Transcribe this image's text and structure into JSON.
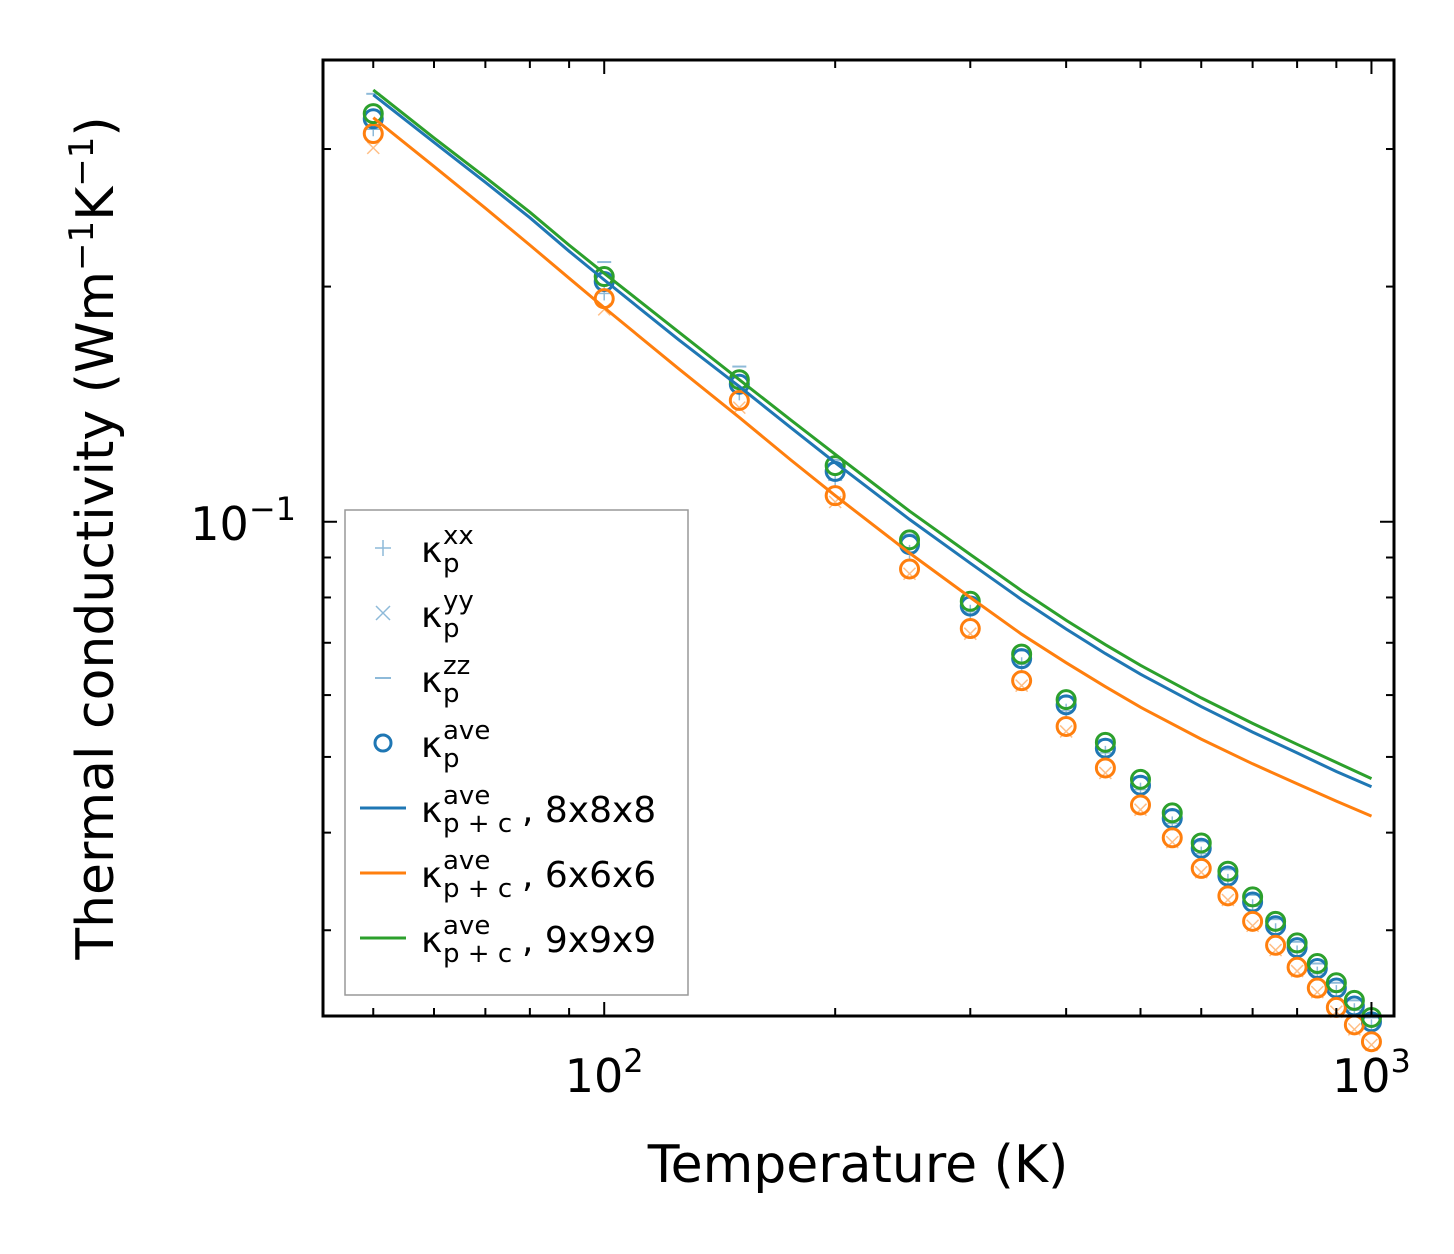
{
  "chart_data": {
    "type": "scatter",
    "title": "",
    "xlabel": "Temperature (K)",
    "ylabel_main": "Thermal conductivity (Wm",
    "ylabel_sup1": "−1",
    "ylabel_mid": "K",
    "ylabel_sup2": "−1",
    "ylabel_end": ")",
    "xscale": "log",
    "yscale": "log",
    "xlim": [
      43,
      1070
    ],
    "ylim": [
      0.0233,
      0.39
    ],
    "xticks": [
      {
        "base": "10",
        "exp": "2",
        "value": 100
      },
      {
        "base": "10",
        "exp": "3",
        "value": 1000
      }
    ],
    "yticks": [
      {
        "base": "10",
        "exp": "−1",
        "value": 0.1
      }
    ],
    "legend_position": "lower-left",
    "x": [
      50,
      100,
      150,
      200,
      250,
      300,
      350,
      400,
      450,
      500,
      550,
      600,
      650,
      700,
      750,
      800,
      850,
      900,
      950,
      1000
    ],
    "point_series": [
      {
        "name": "8x8x8",
        "color": "#1f77b4",
        "values": [
          0.328,
          0.203,
          0.15,
          0.116,
          0.0935,
          0.078,
          0.0668,
          0.0583,
          0.0513,
          0.046,
          0.0417,
          0.0382,
          0.0352,
          0.0326,
          0.0304,
          0.0285,
          0.0268,
          0.0253,
          0.024,
          0.0229
        ],
        "xx": [
          0.318,
          0.196,
          0.146,
          0.113,
          0.0915,
          0.0767,
          0.0657,
          0.0573,
          0.0506,
          0.0454,
          0.0411,
          0.0376,
          0.0347,
          0.0322,
          0.03,
          0.0281,
          0.0264,
          0.025,
          0.0237,
          0.0226
        ],
        "zz": [
          0.353,
          0.215,
          0.158,
          0.12,
          0.0963,
          0.08,
          0.0684,
          0.0597,
          0.0526,
          0.0471,
          0.0427,
          0.039,
          0.0359,
          0.0333,
          0.031,
          0.029,
          0.0272,
          0.0257,
          0.0244,
          0.0232
        ]
      },
      {
        "name": "6x6x6",
        "color": "#ff7f0e",
        "values": [
          0.314,
          0.193,
          0.143,
          0.108,
          0.087,
          0.073,
          0.0626,
          0.0547,
          0.0484,
          0.0434,
          0.0394,
          0.036,
          0.0332,
          0.0308,
          0.0287,
          0.0269,
          0.0253,
          0.0239,
          0.0227,
          0.0216
        ],
        "yy": [
          0.301,
          0.187,
          0.14,
          0.106,
          0.0858,
          0.0719,
          0.0617,
          0.0539,
          0.0477,
          0.0428,
          0.0389,
          0.0356,
          0.0328,
          0.0304,
          0.0283,
          0.0266,
          0.025,
          0.0236,
          0.0224,
          0.0214
        ]
      },
      {
        "name": "9x9x9",
        "color": "#2ca02c",
        "values": [
          0.333,
          0.206,
          0.152,
          0.118,
          0.0948,
          0.0791,
          0.0677,
          0.0592,
          0.0522,
          0.0468,
          0.0424,
          0.0388,
          0.0357,
          0.0331,
          0.0308,
          0.0289,
          0.0272,
          0.0257,
          0.0244,
          0.0232
        ]
      }
    ],
    "line_x": [
      50,
      60,
      70,
      80,
      90,
      100,
      125,
      150,
      175,
      200,
      250,
      300,
      350,
      400,
      450,
      500,
      600,
      700,
      800,
      900,
      1000
    ],
    "line_series": [
      {
        "name": "8x8x8",
        "color": "#1f77b4",
        "values": [
          0.352,
          0.306,
          0.272,
          0.245,
          0.222,
          0.204,
          0.171,
          0.149,
          0.132,
          0.119,
          0.1007,
          0.0885,
          0.0795,
          0.0729,
          0.0678,
          0.0638,
          0.058,
          0.0538,
          0.0506,
          0.0479,
          0.0458
        ]
      },
      {
        "name": "6x6x6",
        "color": "#ff7f0e",
        "values": [
          0.329,
          0.285,
          0.252,
          0.226,
          0.205,
          0.188,
          0.157,
          0.136,
          0.12,
          0.108,
          0.0912,
          0.08,
          0.0718,
          0.066,
          0.0615,
          0.0579,
          0.0527,
          0.049,
          0.0462,
          0.0439,
          0.042
        ]
      },
      {
        "name": "9x9x9",
        "color": "#2ca02c",
        "values": [
          0.357,
          0.31,
          0.276,
          0.249,
          0.226,
          0.208,
          0.175,
          0.152,
          0.135,
          0.122,
          0.1032,
          0.0908,
          0.0816,
          0.0748,
          0.0696,
          0.0655,
          0.0595,
          0.0552,
          0.0519,
          0.0492,
          0.0469
        ]
      }
    ],
    "legend": [
      {
        "kind": "plus",
        "color": "#1f77b4",
        "base": "κ",
        "sup": "xx",
        "sub": "p",
        "suffix": ""
      },
      {
        "kind": "cross",
        "color": "#1f77b4",
        "base": "κ",
        "sup": "yy",
        "sub": "p",
        "suffix": ""
      },
      {
        "kind": "dash",
        "color": "#1f77b4",
        "base": "κ",
        "sup": "zz",
        "sub": "p",
        "suffix": ""
      },
      {
        "kind": "circle",
        "color": "#1f77b4",
        "base": "κ",
        "sup": "ave",
        "sub": "p",
        "suffix": ""
      },
      {
        "kind": "line",
        "color": "#1f77b4",
        "base": "κ",
        "sup": "ave",
        "sub": "p + c",
        "suffix": ", 8x8x8"
      },
      {
        "kind": "line",
        "color": "#ff7f0e",
        "base": "κ",
        "sup": "ave",
        "sub": "p + c",
        "suffix": ", 6x6x6"
      },
      {
        "kind": "line",
        "color": "#2ca02c",
        "base": "κ",
        "sup": "ave",
        "sub": "p + c",
        "suffix": ", 9x9x9"
      }
    ]
  }
}
